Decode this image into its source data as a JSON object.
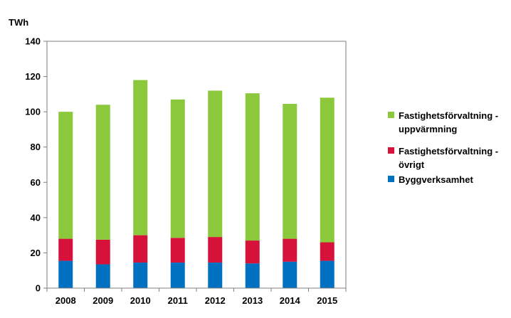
{
  "chart_data": {
    "type": "bar",
    "stacked": true,
    "unit_label": "TWh",
    "categories": [
      "2008",
      "2009",
      "2010",
      "2011",
      "2012",
      "2013",
      "2014",
      "2015"
    ],
    "series": [
      {
        "name": "Byggverksamhet",
        "color": "#0070C0",
        "values": [
          15.5,
          13.5,
          14.5,
          14.5,
          14.5,
          14.0,
          15.0,
          15.5
        ]
      },
      {
        "name": "Fastighetsförvaltning - övrigt",
        "name_lines": [
          "Fastighetsförvaltning -",
          "övrigt"
        ],
        "color": "#D6123A",
        "values": [
          12.5,
          14.0,
          15.5,
          14.0,
          14.5,
          13.0,
          13.0,
          10.5
        ]
      },
      {
        "name": "Fastighetsförvaltning - uppvärmning",
        "name_lines": [
          "Fastighetsförvaltning -",
          "uppvärmning"
        ],
        "color": "#8CC83C",
        "values": [
          72.0,
          76.5,
          88.0,
          78.5,
          83.0,
          83.5,
          76.5,
          82.0
        ]
      }
    ],
    "ylim": [
      0,
      140
    ],
    "yticks": [
      0,
      20,
      40,
      60,
      80,
      100,
      120,
      140
    ],
    "grid": false,
    "legend_position": "right",
    "legend_order": [
      2,
      1,
      0
    ]
  }
}
